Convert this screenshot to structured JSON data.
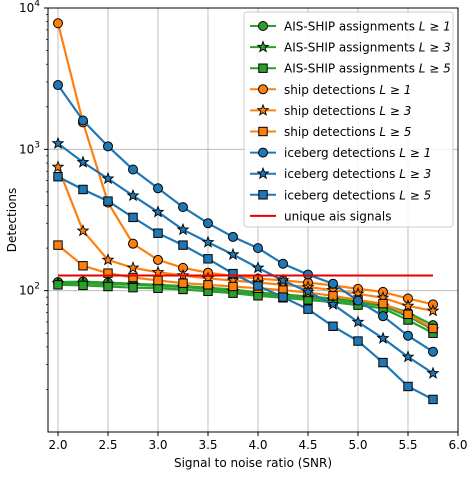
{
  "chart_data": {
    "type": "line",
    "xlabel": "Signal to noise ratio (SNR)",
    "ylabel": "Detections",
    "xlim": [
      1.9,
      6.0
    ],
    "ylim": [
      10,
      10000
    ],
    "yscale": "log",
    "grid": true,
    "legend_position": "top-right",
    "xticks": [
      2.0,
      2.5,
      3.0,
      3.5,
      4.0,
      4.5,
      5.0,
      5.5,
      6.0
    ],
    "xtick_labels": [
      "2.0",
      "2.5",
      "3.0",
      "3.5",
      "4.0",
      "4.5",
      "5.0",
      "5.5",
      "6.0"
    ],
    "yticks": [
      {
        "value": 100,
        "base": "10",
        "exp": "2"
      },
      {
        "value": 1000,
        "base": "10",
        "exp": "3"
      },
      {
        "value": 10000,
        "base": "10",
        "exp": "4"
      }
    ],
    "x": [
      2.0,
      2.25,
      2.5,
      2.75,
      3.0,
      3.25,
      3.5,
      3.75,
      4.0,
      4.25,
      4.5,
      4.75,
      5.0,
      5.25,
      5.5,
      5.75
    ],
    "series": [
      {
        "name": "AIS-SHIP assignments L ≥ 1",
        "legend_main": "AIS-SHIP assignments ",
        "legend_math": "L ≥ 1",
        "color": "#2ca02c",
        "marker": "circle",
        "values": [
          115,
          116,
          114,
          112,
          110,
          108,
          105,
          102,
          97,
          94,
          91,
          88,
          84,
          80,
          70,
          57
        ]
      },
      {
        "name": "AIS-SHIP assignments L ≥ 3",
        "legend_main": "AIS-SHIP assignments ",
        "legend_math": "L ≥ 3",
        "color": "#2ca02c",
        "marker": "star",
        "values": [
          113,
          113,
          111,
          110,
          108,
          106,
          103,
          99,
          95,
          92,
          89,
          86,
          82,
          78,
          66,
          53
        ]
      },
      {
        "name": "AIS-SHIP assignments L ≥ 5",
        "legend_main": "AIS-SHIP assignments ",
        "legend_math": "L ≥ 5",
        "color": "#2ca02c",
        "marker": "square",
        "values": [
          110,
          109,
          107,
          105,
          104,
          102,
          99,
          96,
          92,
          89,
          86,
          83,
          79,
          75,
          62,
          50
        ]
      },
      {
        "name": "ship detections L ≥ 1",
        "legend_main": "ship detections ",
        "legend_math": "L ≥ 1",
        "color": "#ff7f0e",
        "marker": "circle",
        "values": [
          7800,
          1550,
          420,
          215,
          165,
          145,
          134,
          127,
          122,
          118,
          114,
          109,
          103,
          98,
          88,
          80
        ]
      },
      {
        "name": "ship detections L ≥ 3",
        "legend_main": "ship detections ",
        "legend_math": "L ≥ 3",
        "color": "#ff7f0e",
        "marker": "star",
        "values": [
          750,
          265,
          165,
          145,
          135,
          128,
          122,
          118,
          114,
          110,
          106,
          101,
          95,
          89,
          78,
          72
        ]
      },
      {
        "name": "ship detections L ≥ 5",
        "legend_main": "ship detections ",
        "legend_math": "L ≥ 5",
        "color": "#ff7f0e",
        "marker": "square",
        "values": [
          210,
          150,
          133,
          124,
          118,
          113,
          110,
          107,
          104,
          101,
          97,
          92,
          86,
          81,
          68,
          54
        ]
      },
      {
        "name": "iceberg detections L ≥ 1",
        "legend_main": "iceberg detections ",
        "legend_math": "L ≥ 1",
        "color": "#1f77b4",
        "marker": "circle",
        "values": [
          2850,
          1600,
          1050,
          720,
          530,
          390,
          300,
          240,
          200,
          155,
          130,
          112,
          85,
          66,
          48,
          37
        ]
      },
      {
        "name": "iceberg detections L ≥ 3",
        "legend_main": "iceberg detections ",
        "legend_math": "L ≥ 3",
        "color": "#1f77b4",
        "marker": "star",
        "values": [
          1100,
          810,
          620,
          470,
          360,
          270,
          220,
          180,
          145,
          118,
          98,
          80,
          60,
          46,
          34,
          26
        ]
      },
      {
        "name": "iceberg detections L ≥ 5",
        "legend_main": "iceberg detections ",
        "legend_math": "L ≥ 5",
        "color": "#1f77b4",
        "marker": "square",
        "values": [
          640,
          520,
          430,
          330,
          255,
          210,
          168,
          132,
          108,
          90,
          74,
          56,
          44,
          31,
          21,
          17
        ]
      },
      {
        "name": "unique ais signals",
        "legend_main": "unique ais signals",
        "legend_math": "",
        "color": "#e60000",
        "marker": "none",
        "values": [
          128,
          128,
          128,
          128,
          128,
          128,
          128,
          128,
          128,
          128,
          128,
          128,
          128,
          128,
          128,
          128
        ]
      }
    ]
  }
}
